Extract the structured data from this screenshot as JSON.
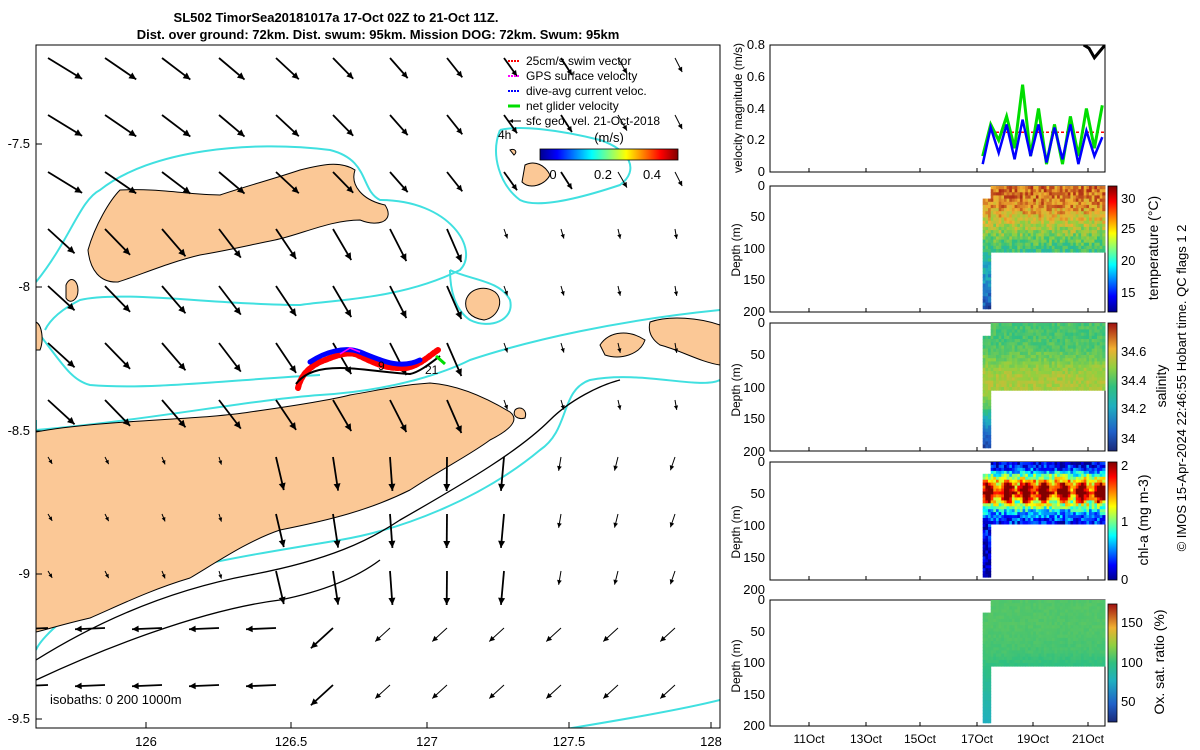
{
  "title": {
    "line1": "SL502 TimorSea20181017a 17-Oct 02Z to 21-Oct 11Z.",
    "line2": "Dist. over ground: 72km. Dist. swum: 95km. Mission DOG: 72km. Swum: 95km"
  },
  "map": {
    "xticks": [
      "126",
      "126.5",
      "127",
      "127.5",
      "128"
    ],
    "yticks": [
      "-7.5",
      "-8",
      "-8.5",
      "-9",
      "-9.5"
    ],
    "xlim": [
      125.62,
      128.05
    ],
    "ylim": [
      -9.55,
      -7.35
    ],
    "legend": [
      {
        "label": "25cm/s swim vector",
        "color": "#ff0000"
      },
      {
        "label": "GPS surface velocity",
        "color": "#ff00ff"
      },
      {
        "label": "dive-avg current veloc.",
        "color": "#0000ff"
      },
      {
        "label": "net glider velocity",
        "color": "#00dd00"
      },
      {
        "label": "sfc geo. vel. 21-Oct-2018",
        "color": "#000000"
      }
    ],
    "colorbar": {
      "label": "(m/s)",
      "ticks": [
        "0",
        "0.2",
        "0.4"
      ],
      "range": [
        0,
        0.45
      ]
    },
    "isobaths_label": "isobaths: 0   200  1000m",
    "annotations": [
      "4h",
      "9",
      "21"
    ],
    "land_color": "#fbc896",
    "isobath_200_color": "#40e0e0"
  },
  "time_axis": {
    "ticks": [
      "11Oct",
      "13Oct",
      "15Oct",
      "17Oct",
      "19Oct",
      "21Oct"
    ],
    "range_days": [
      9,
      21.6
    ]
  },
  "panels": [
    {
      "id": "velocity",
      "ylabel": "velocity magnitude (m/s)",
      "yticks": [
        "0",
        "0.2",
        "0.4",
        "0.6",
        "0.8"
      ],
      "ylim": [
        0,
        0.8
      ]
    },
    {
      "id": "temperature",
      "ylabel": "Depth (m)",
      "yticks": [
        "0",
        "50",
        "100",
        "150",
        "200"
      ],
      "cbar_label": "temperature (°C)",
      "cbar_ticks": [
        "15",
        "20",
        "25",
        "30"
      ],
      "cbar_range": [
        12,
        32
      ]
    },
    {
      "id": "salinity",
      "ylabel": "Depth (m)",
      "yticks": [
        "0",
        "50",
        "100",
        "150",
        "200"
      ],
      "cbar_label": "salinity",
      "cbar_ticks": [
        "34",
        "34.2",
        "34.4",
        "34.6"
      ],
      "cbar_range": [
        33.95,
        34.75
      ]
    },
    {
      "id": "chla",
      "ylabel": "Depth (m)",
      "yticks": [
        "0",
        "50",
        "100",
        "150",
        "200"
      ],
      "cbar_label": "chl-a (mg m-3)",
      "cbar_ticks": [
        "0",
        "1",
        "2"
      ],
      "cbar_range": [
        0,
        2
      ]
    },
    {
      "id": "oxygen",
      "ylabel": "Depth (m)",
      "yticks": [
        "0",
        "50",
        "100",
        "150",
        "200"
      ],
      "cbar_label": "Ox. sat. ratio (%)",
      "cbar_ticks": [
        "50",
        "100",
        "150"
      ],
      "cbar_range": [
        25,
        175
      ]
    }
  ],
  "side_note": "© IMOS 15-Apr-2024 22:46:55 Hobart time. QC flags 1  2",
  "chart_data": [
    {
      "type": "scatter",
      "title": "SL502 TimorSea20181017a 17-Oct 02Z to 21-Oct 11Z.",
      "description_axes": {
        "x": "longitude",
        "y": "latitude"
      },
      "xlim": [
        125.62,
        128.05
      ],
      "ylim": [
        -9.55,
        -7.35
      ],
      "glider_track": [
        [
          126.52,
          -8.35
        ],
        [
          126.6,
          -8.31
        ],
        [
          126.7,
          -8.3
        ],
        [
          126.8,
          -8.29
        ],
        [
          126.9,
          -8.3
        ],
        [
          126.96,
          -8.3
        ],
        [
          127.02,
          -8.25
        ],
        [
          127.04,
          -8.27
        ]
      ],
      "series": [
        {
          "name": "25cm/s swim vector"
        },
        {
          "name": "GPS surface velocity"
        },
        {
          "name": "dive-avg current veloc."
        },
        {
          "name": "net glider velocity"
        },
        {
          "name": "sfc geo. vel. 21-Oct-2018"
        }
      ]
    },
    {
      "type": "line",
      "ylabel": "velocity magnitude (m/s)",
      "ylim": [
        0,
        0.8
      ],
      "x_unit": "day of October 2018",
      "series": [
        {
          "name": "dive-avg current veloc.",
          "color": "#0000ff",
          "x": [
            17.0,
            17.3,
            17.6,
            17.9,
            18.2,
            18.5,
            18.8,
            19.1,
            19.4,
            19.7,
            20.0,
            20.3,
            20.6,
            20.9,
            21.2,
            21.5
          ],
          "y": [
            0.05,
            0.28,
            0.12,
            0.3,
            0.08,
            0.33,
            0.1,
            0.3,
            0.06,
            0.28,
            0.08,
            0.3,
            0.05,
            0.26,
            0.1,
            0.22
          ]
        },
        {
          "name": "net glider velocity",
          "color": "#00dd00",
          "x": [
            17.0,
            17.3,
            17.6,
            17.9,
            18.2,
            18.5,
            18.8,
            19.1,
            19.4,
            19.7,
            20.0,
            20.3,
            20.6,
            20.9,
            21.2,
            21.5
          ],
          "y": [
            0.1,
            0.3,
            0.2,
            0.35,
            0.15,
            0.55,
            0.1,
            0.4,
            0.05,
            0.3,
            0.05,
            0.35,
            0.1,
            0.4,
            0.15,
            0.42
          ]
        },
        {
          "name": "25cm/s swim vector",
          "color": "#ff0000",
          "x": [
            17.5,
            21.6
          ],
          "y": [
            0.25,
            0.25
          ]
        },
        {
          "name": "sfc geo. vel. 21-Oct-2018",
          "color": "#000000",
          "x": [
            20.8,
            21.0,
            21.2,
            21.4,
            21.6
          ],
          "y": [
            0.8,
            0.78,
            0.72,
            0.76,
            0.8
          ]
        }
      ]
    },
    {
      "type": "heatmap",
      "variable": "temperature (°C)",
      "x_range_days": [
        17.0,
        21.6
      ],
      "depth_range_m": [
        0,
        200
      ],
      "profile_max_depth_m": {
        "before_17.3": 195,
        "after_17.3": 105
      },
      "depths_m": [
        0,
        10,
        20,
        30,
        40,
        50,
        60,
        70,
        80,
        90,
        100,
        120,
        140,
        160,
        180,
        195
      ],
      "values": [
        29.5,
        29.5,
        29.2,
        28.8,
        28.0,
        27.0,
        26.0,
        25.0,
        24.0,
        23.0,
        22.0,
        20.0,
        18.0,
        16.5,
        15.0,
        14.0
      ]
    },
    {
      "type": "heatmap",
      "variable": "salinity",
      "x_range_days": [
        17.0,
        21.6
      ],
      "depth_range_m": [
        0,
        200
      ],
      "profile_max_depth_m": {
        "before_17.3": 195,
        "after_17.3": 105
      },
      "depths_m": [
        0,
        20,
        40,
        60,
        80,
        100,
        120,
        140,
        160,
        180,
        195
      ],
      "values": [
        34.38,
        34.38,
        34.4,
        34.45,
        34.5,
        34.5,
        34.45,
        34.3,
        34.15,
        34.05,
        34.0
      ]
    },
    {
      "type": "heatmap",
      "variable": "chl-a (mg m-3)",
      "x_range_days": [
        17.0,
        21.6
      ],
      "depth_range_m": [
        0,
        200
      ],
      "profile_max_depth_m": {
        "before_17.3": 195,
        "after_17.3": 105
      },
      "depths_m": [
        0,
        10,
        20,
        30,
        40,
        50,
        60,
        70,
        80,
        90,
        100,
        120,
        150,
        195
      ],
      "values": [
        0.15,
        0.4,
        0.9,
        1.4,
        1.8,
        2.0,
        1.6,
        1.1,
        0.7,
        0.45,
        0.3,
        0.15,
        0.05,
        0.0
      ]
    },
    {
      "type": "heatmap",
      "variable": "Ox. sat. ratio (%)",
      "x_range_days": [
        17.0,
        21.6
      ],
      "depth_range_m": [
        0,
        200
      ],
      "profile_max_depth_m": {
        "before_17.3": 195,
        "after_17.3": 105
      },
      "depths_m": [
        0,
        40,
        80,
        100,
        120,
        140,
        160,
        180,
        195
      ],
      "values": [
        108,
        108,
        105,
        100,
        95,
        90,
        85,
        80,
        78
      ]
    }
  ]
}
